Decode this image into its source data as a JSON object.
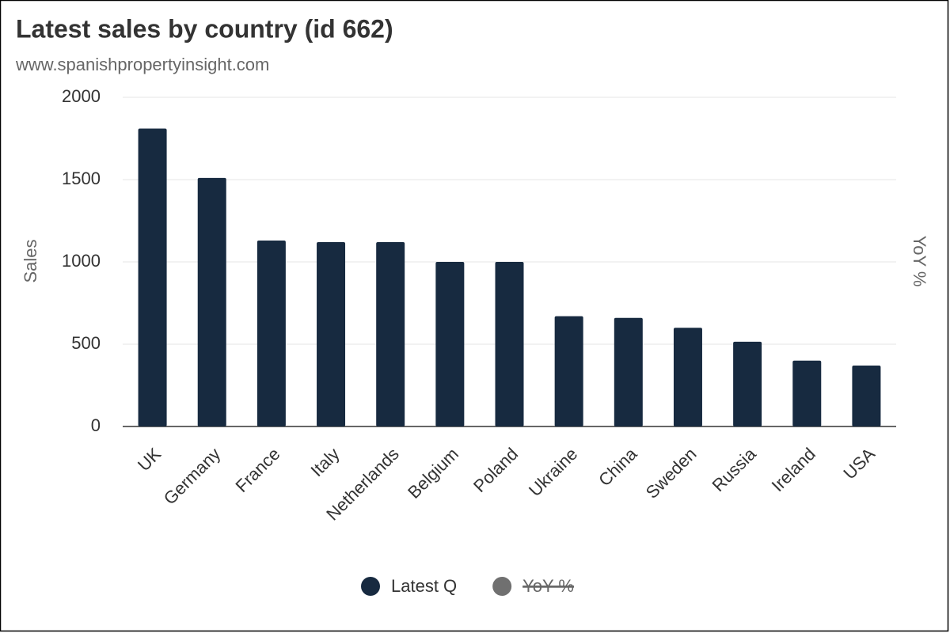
{
  "chart_data": {
    "type": "bar",
    "title": "Latest sales by country (id 662)",
    "subtitle": "www.spanishpropertyinsight.com",
    "y_label": "Sales",
    "y2_label": "YoY %",
    "categories": [
      "UK",
      "Germany",
      "France",
      "Italy",
      "Netherlands",
      "Belgium",
      "Poland",
      "Ukraine",
      "China",
      "Sweden",
      "Russia",
      "Ireland",
      "USA"
    ],
    "series": [
      {
        "name": "Latest Q",
        "color": "#172a40",
        "values": [
          1810,
          1510,
          1130,
          1120,
          1120,
          1000,
          1000,
          670,
          660,
          600,
          515,
          400,
          370
        ]
      },
      {
        "name": "YoY %",
        "color": "#707070",
        "hidden": true,
        "axis": "y2",
        "values": [
          null,
          null,
          null,
          null,
          null,
          null,
          null,
          null,
          null,
          null,
          null,
          null,
          null
        ]
      }
    ],
    "ylim": [
      0,
      2000
    ],
    "yticks": [
      0,
      500,
      1000,
      1500,
      2000
    ],
    "grid": true
  }
}
